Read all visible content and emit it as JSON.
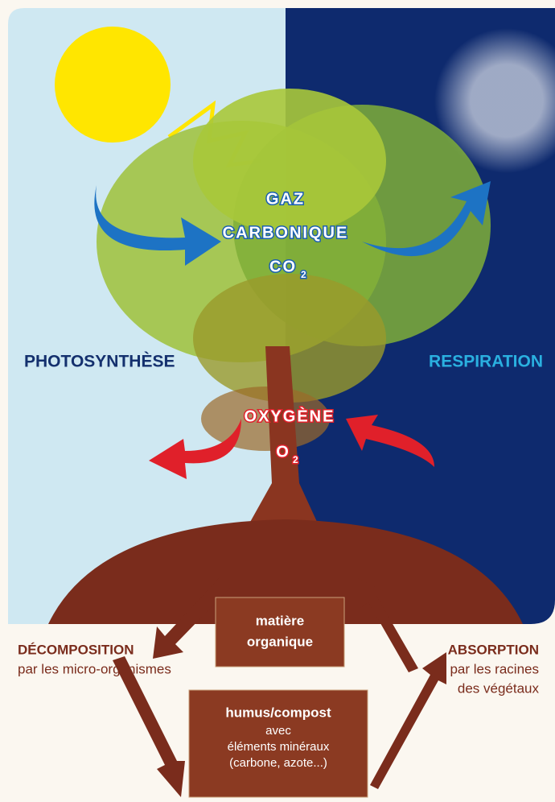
{
  "co2": {
    "line1": "GAZ",
    "line2": "CARBONIQUE",
    "formula": "CO",
    "subscript": "2"
  },
  "left_label": "PHOTOSYNTHÈSE",
  "right_label": "RESPIRATION",
  "o2": {
    "line1": "OXYGÈNE",
    "formula": "O",
    "subscript": "2"
  },
  "organic_matter": {
    "line1": "matière",
    "line2": "organique"
  },
  "decomposition": {
    "title": "DÉCOMPOSITION",
    "text": "par les micro-organismes"
  },
  "absorption": {
    "title": "ABSORPTION",
    "line1": "par les racines",
    "line2": "des végétaux"
  },
  "humus": {
    "title": "humus/compost",
    "line1": "avec",
    "line2": "éléments minéraux",
    "line3": "(carbone, azote...)"
  }
}
